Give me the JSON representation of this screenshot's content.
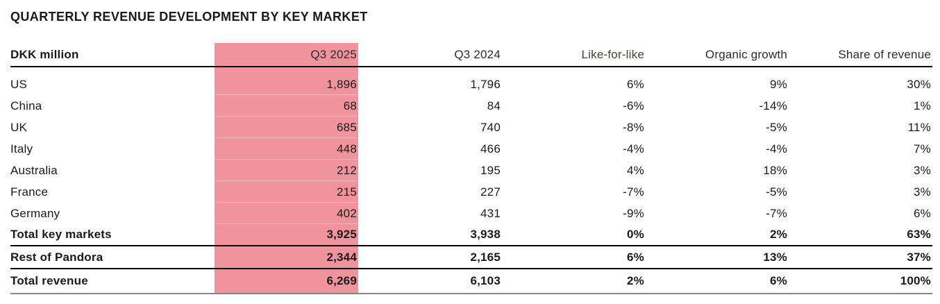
{
  "theme": {
    "highlight_pink": "#F0939C",
    "text_color": "#1A1A1A",
    "header_color": "#2E2B28",
    "lfl_header_color": "#4C3E35",
    "rule_dark": "#000000",
    "rule_gray": "#8D857C"
  },
  "title": "QUARTERLY REVENUE DEVELOPMENT BY KEY MARKET",
  "table": {
    "unit_label": "DKK million",
    "highlighted_column": "Q3 2025",
    "columns": [
      "Q3 2025",
      "Q3 2024",
      "Like-for-like",
      "Organic growth",
      "Share of revenue"
    ],
    "rows": [
      {
        "label": "US",
        "q3_2025": "1,896",
        "q3_2024": "1,796",
        "like_for_like": "6%",
        "organic_growth": "9%",
        "share_of_revenue": "30%"
      },
      {
        "label": "China",
        "q3_2025": "68",
        "q3_2024": "84",
        "like_for_like": "-6%",
        "organic_growth": "-14%",
        "share_of_revenue": "1%"
      },
      {
        "label": "UK",
        "q3_2025": "685",
        "q3_2024": "740",
        "like_for_like": "-8%",
        "organic_growth": "-5%",
        "share_of_revenue": "11%"
      },
      {
        "label": "Italy",
        "q3_2025": "448",
        "q3_2024": "466",
        "like_for_like": "-4%",
        "organic_growth": "-4%",
        "share_of_revenue": "7%"
      },
      {
        "label": "Australia",
        "q3_2025": "212",
        "q3_2024": "195",
        "like_for_like": "4%",
        "organic_growth": "18%",
        "share_of_revenue": "3%"
      },
      {
        "label": "France",
        "q3_2025": "215",
        "q3_2024": "227",
        "like_for_like": "-7%",
        "organic_growth": "-5%",
        "share_of_revenue": "3%"
      },
      {
        "label": "Germany",
        "q3_2025": "402",
        "q3_2024": "431",
        "like_for_like": "-9%",
        "organic_growth": "-7%",
        "share_of_revenue": "6%"
      },
      {
        "label": "Total key markets",
        "q3_2025": "3,925",
        "q3_2024": "3,938",
        "like_for_like": "0%",
        "organic_growth": "2%",
        "share_of_revenue": "63%"
      },
      {
        "label": "Rest of Pandora",
        "q3_2025": "2,344",
        "q3_2024": "2,165",
        "like_for_like": "6%",
        "organic_growth": "13%",
        "share_of_revenue": "37%"
      },
      {
        "label": "Total revenue",
        "q3_2025": "6,269",
        "q3_2024": "6,103",
        "like_for_like": "2%",
        "organic_growth": "6%",
        "share_of_revenue": "100%"
      }
    ]
  }
}
